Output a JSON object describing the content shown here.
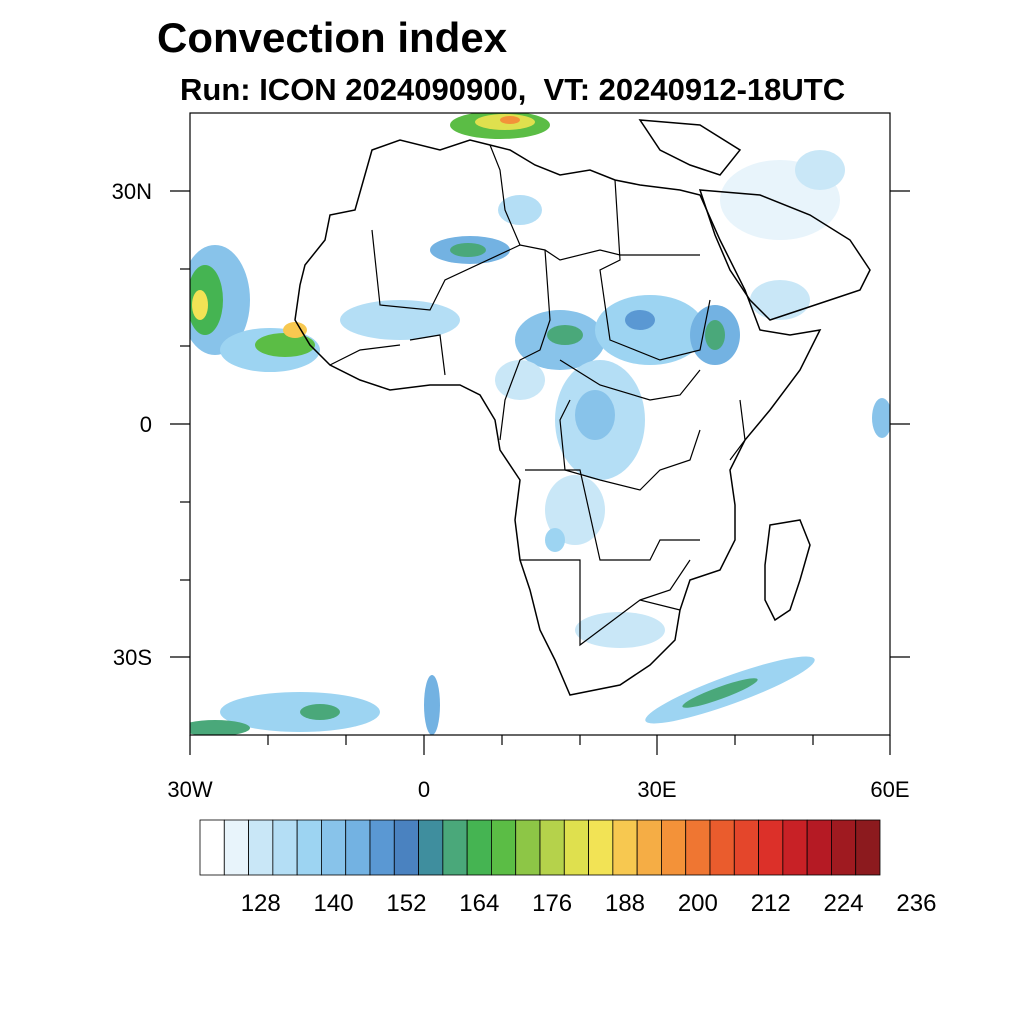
{
  "title": "Convection index",
  "subtitle": "Run: ICON 2024090900,  VT: 20240912-18UTC",
  "map": {
    "region": "Africa",
    "lon_range": [
      -30,
      60
    ],
    "lat_range": [
      -40,
      40
    ],
    "x_ticks": [
      "30W",
      "0",
      "30E",
      "60E"
    ],
    "y_ticks": [
      "30N",
      "0",
      "30S"
    ]
  },
  "colorbar": {
    "labels": [
      "128",
      "140",
      "152",
      "164",
      "176",
      "188",
      "200",
      "212",
      "224",
      "236"
    ],
    "colors": [
      "#ffffff",
      "#e8f4fb",
      "#c9e7f7",
      "#b4def5",
      "#9dd4f2",
      "#88c3ea",
      "#73b2e2",
      "#5a98d3",
      "#4a82c0",
      "#3f8e9e",
      "#4aa87a",
      "#45b452",
      "#5bbd45",
      "#8dc646",
      "#b5d24b",
      "#dfe04e",
      "#f2e355",
      "#f7c850",
      "#f5ad45",
      "#f39239",
      "#ef7632",
      "#ea5c2d",
      "#e4462b",
      "#dc3029",
      "#c82126",
      "#b51a24",
      "#9f1a20",
      "#8c1a1e"
    ]
  }
}
